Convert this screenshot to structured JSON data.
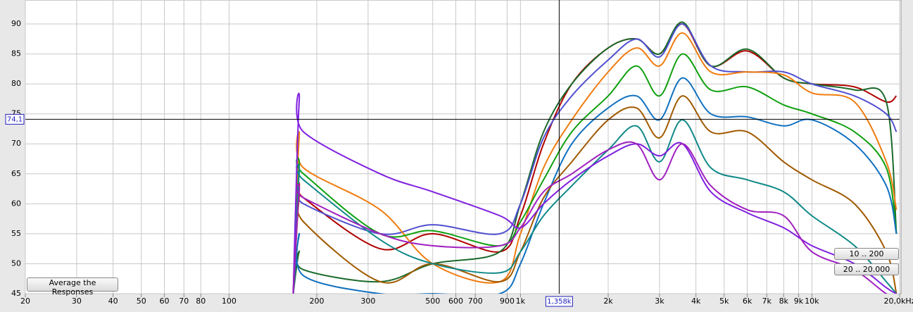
{
  "chart_data": {
    "type": "line",
    "xscale": "log",
    "grid": true,
    "xlim": [
      20,
      20000
    ],
    "ylim": [
      45,
      94
    ],
    "xticks": [
      20,
      30,
      40,
      50,
      60,
      70,
      80,
      100,
      200,
      300,
      500,
      600,
      700,
      900,
      {
        "value": 1000,
        "label": "1k"
      },
      {
        "value": 2000,
        "label": "2k"
      },
      {
        "value": 3000,
        "label": "3k"
      },
      {
        "value": 4000,
        "label": "4k"
      },
      {
        "value": 5000,
        "label": "5k"
      },
      {
        "value": 6000,
        "label": "6k"
      },
      {
        "value": 7000,
        "label": "7k"
      },
      {
        "value": 8000,
        "label": "8k"
      },
      {
        "value": 9000,
        "label": "9k"
      },
      {
        "value": 10000,
        "label": "10k"
      },
      {
        "value": 20000,
        "label": "20,0kHz"
      }
    ],
    "yticks": [
      45,
      50,
      55,
      60,
      65,
      70,
      75,
      80,
      85,
      90
    ],
    "cursor": {
      "x": {
        "value": 1358,
        "label": "1,358k"
      },
      "y": {
        "value": 74.1,
        "label": "74,1"
      }
    },
    "x": [
      166,
      174,
      180,
      330,
      500,
      850,
      1000,
      1200,
      1500,
      2000,
      2500,
      3000,
      3600,
      4500,
      6000,
      8000,
      10000,
      14000,
      18000,
      19500
    ],
    "series": [
      {
        "color": "#b00000",
        "values": [
          45,
          62.5,
          61,
          52.5,
          55,
          52,
          58,
          70,
          80,
          86,
          87.5,
          85,
          90,
          83,
          85.5,
          81,
          80,
          79.5,
          77,
          78
        ]
      },
      {
        "color": "#1a6a2a",
        "values": [
          45,
          52,
          49,
          47,
          50,
          52,
          60,
          72,
          80,
          86,
          87.5,
          85,
          90.3,
          83,
          85.8,
          81,
          80,
          79,
          77,
          55
        ]
      },
      {
        "color": "#5050d0",
        "values": [
          45,
          62,
          60,
          55,
          56.5,
          55,
          60,
          71,
          78,
          84,
          87.5,
          84.5,
          90,
          83,
          82,
          82,
          80,
          78,
          75,
          72
        ]
      },
      {
        "color": "#f07c10",
        "values": [
          45,
          71,
          66,
          59,
          50,
          47,
          55,
          66,
          74,
          82,
          86,
          83,
          88.5,
          82,
          82,
          81.5,
          78.5,
          77,
          67,
          59
        ]
      },
      {
        "color": "#10a010",
        "values": [
          45,
          66,
          65,
          55,
          55.5,
          53,
          57,
          64,
          72,
          78,
          83,
          78,
          85,
          79,
          79.5,
          76.5,
          75,
          72,
          66,
          55
        ]
      },
      {
        "color": "#1070c0",
        "values": [
          45,
          55,
          48,
          45,
          45,
          45,
          50,
          60,
          70,
          76,
          78,
          74,
          81,
          75,
          74.5,
          73,
          74,
          70,
          63,
          55
        ]
      },
      {
        "color": "#a05a00",
        "values": [
          45,
          61,
          57,
          47,
          50,
          47,
          52,
          61,
          67,
          74,
          76,
          71,
          78,
          72,
          72,
          67,
          64,
          60,
          52,
          45
        ]
      },
      {
        "color": "#108888",
        "values": [
          45,
          65,
          64,
          54,
          50,
          48.5,
          52,
          58,
          63,
          69,
          73,
          67,
          74,
          66,
          64,
          62,
          58,
          53,
          47,
          45
        ]
      },
      {
        "color": "#8020e0",
        "values": [
          45,
          77,
          72,
          65,
          62,
          58,
          56,
          60,
          64,
          68,
          70,
          68,
          70,
          62,
          58.5,
          56,
          53,
          50,
          46,
          45
        ]
      },
      {
        "color": "#a020c0",
        "values": [
          45,
          62,
          61,
          55,
          53,
          53,
          56,
          62,
          65,
          69,
          70,
          64,
          70,
          63,
          59,
          58,
          52,
          49,
          45,
          45
        ]
      }
    ]
  },
  "controls": {
    "average": "Average the Responses",
    "range_low": "10 .. 200",
    "range_full": "20 .. 20.000"
  }
}
